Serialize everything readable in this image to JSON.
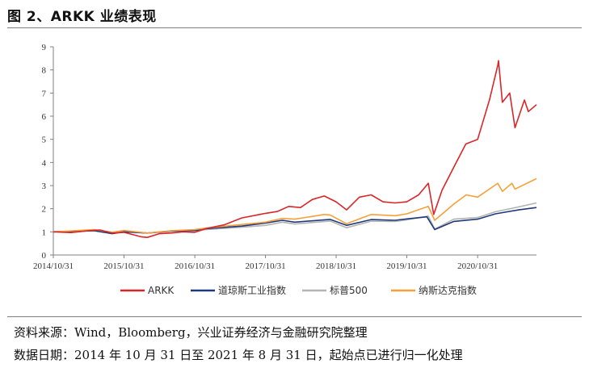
{
  "header": {
    "title": "图 2、ARKK 业绩表现"
  },
  "footer": {
    "source": "资料来源：Wind，Bloomberg，兴业证券经济与金融研究院整理",
    "date_note": "数据日期：2014 年 10 月 31 日至 2021 年 8 月 31 日，起始点已进行归一化处理"
  },
  "chart_data": {
    "type": "line",
    "x_tick_labels": [
      "2014/10/31",
      "2015/10/31",
      "2016/10/31",
      "2017/10/31",
      "2018/10/31",
      "2019/10/31",
      "2020/10/31"
    ],
    "x_range": [
      "2014-10-31",
      "2021-08-31"
    ],
    "ylim": [
      0,
      9
    ],
    "y_ticks": [
      0,
      1,
      2,
      3,
      4,
      5,
      6,
      7,
      8,
      9
    ],
    "grid": false,
    "legend_position": "bottom",
    "series": [
      {
        "name": "ARKK",
        "color": "#d9262a",
        "points": [
          [
            "2014-10-31",
            1.0
          ],
          [
            "2015-01-31",
            0.97
          ],
          [
            "2015-04-30",
            1.05
          ],
          [
            "2015-06-30",
            1.08
          ],
          [
            "2015-08-31",
            0.95
          ],
          [
            "2015-10-31",
            0.98
          ],
          [
            "2016-01-31",
            0.78
          ],
          [
            "2016-02-29",
            0.76
          ],
          [
            "2016-04-30",
            0.92
          ],
          [
            "2016-06-30",
            0.95
          ],
          [
            "2016-08-31",
            1.0
          ],
          [
            "2016-10-31",
            0.98
          ],
          [
            "2016-12-31",
            1.15
          ],
          [
            "2017-03-31",
            1.3
          ],
          [
            "2017-06-30",
            1.6
          ],
          [
            "2017-09-30",
            1.75
          ],
          [
            "2017-10-31",
            1.8
          ],
          [
            "2017-12-31",
            1.88
          ],
          [
            "2018-02-28",
            2.1
          ],
          [
            "2018-04-30",
            2.05
          ],
          [
            "2018-06-30",
            2.4
          ],
          [
            "2018-08-31",
            2.55
          ],
          [
            "2018-10-31",
            2.3
          ],
          [
            "2018-12-24",
            1.95
          ],
          [
            "2019-02-28",
            2.5
          ],
          [
            "2019-04-30",
            2.6
          ],
          [
            "2019-06-30",
            2.3
          ],
          [
            "2019-08-31",
            2.25
          ],
          [
            "2019-10-31",
            2.3
          ],
          [
            "2019-12-31",
            2.6
          ],
          [
            "2020-02-19",
            3.1
          ],
          [
            "2020-03-18",
            1.75
          ],
          [
            "2020-04-30",
            2.8
          ],
          [
            "2020-06-30",
            3.8
          ],
          [
            "2020-08-31",
            4.8
          ],
          [
            "2020-10-31",
            5.0
          ],
          [
            "2020-12-31",
            6.7
          ],
          [
            "2021-02-12",
            8.2
          ],
          [
            "2021-02-16",
            8.4
          ],
          [
            "2021-03-08",
            6.6
          ],
          [
            "2021-04-15",
            7.0
          ],
          [
            "2021-05-12",
            5.5
          ],
          [
            "2021-06-30",
            6.7
          ],
          [
            "2021-07-20",
            6.2
          ],
          [
            "2021-08-31",
            6.5
          ]
        ]
      },
      {
        "name": "道琼斯工业指数",
        "color": "#1f3a7a",
        "points": [
          [
            "2014-10-31",
            1.0
          ],
          [
            "2015-05-31",
            1.05
          ],
          [
            "2015-08-31",
            0.92
          ],
          [
            "2015-10-31",
            1.0
          ],
          [
            "2016-02-29",
            0.95
          ],
          [
            "2016-06-30",
            1.03
          ],
          [
            "2016-10-31",
            1.06
          ],
          [
            "2016-12-31",
            1.14
          ],
          [
            "2017-06-30",
            1.25
          ],
          [
            "2017-10-31",
            1.38
          ],
          [
            "2018-01-26",
            1.5
          ],
          [
            "2018-03-31",
            1.42
          ],
          [
            "2018-09-30",
            1.54
          ],
          [
            "2018-12-24",
            1.28
          ],
          [
            "2019-04-30",
            1.53
          ],
          [
            "2019-08-31",
            1.5
          ],
          [
            "2019-10-31",
            1.56
          ],
          [
            "2020-02-12",
            1.65
          ],
          [
            "2020-03-23",
            1.1
          ],
          [
            "2020-06-30",
            1.45
          ],
          [
            "2020-10-31",
            1.55
          ],
          [
            "2021-01-31",
            1.78
          ],
          [
            "2021-05-31",
            1.95
          ],
          [
            "2021-08-31",
            2.05
          ]
        ]
      },
      {
        "name": "标普500",
        "color": "#b3b3b3",
        "points": [
          [
            "2014-10-31",
            1.0
          ],
          [
            "2015-05-31",
            1.06
          ],
          [
            "2015-08-31",
            0.93
          ],
          [
            "2015-10-31",
            1.02
          ],
          [
            "2016-02-29",
            0.95
          ],
          [
            "2016-06-30",
            1.03
          ],
          [
            "2016-10-31",
            1.05
          ],
          [
            "2016-12-31",
            1.1
          ],
          [
            "2017-06-30",
            1.2
          ],
          [
            "2017-10-31",
            1.28
          ],
          [
            "2018-01-26",
            1.42
          ],
          [
            "2018-03-31",
            1.34
          ],
          [
            "2018-09-30",
            1.47
          ],
          [
            "2018-12-24",
            1.18
          ],
          [
            "2019-04-30",
            1.46
          ],
          [
            "2019-08-31",
            1.45
          ],
          [
            "2019-10-31",
            1.52
          ],
          [
            "2020-02-19",
            1.68
          ],
          [
            "2020-03-23",
            1.12
          ],
          [
            "2020-06-30",
            1.55
          ],
          [
            "2020-10-31",
            1.62
          ],
          [
            "2021-01-31",
            1.87
          ],
          [
            "2021-05-31",
            2.08
          ],
          [
            "2021-08-31",
            2.25
          ]
        ]
      },
      {
        "name": "纳斯达克指数",
        "color": "#f5a03a",
        "points": [
          [
            "2014-10-31",
            1.0
          ],
          [
            "2015-05-31",
            1.1
          ],
          [
            "2015-08-31",
            0.98
          ],
          [
            "2015-10-31",
            1.06
          ],
          [
            "2016-02-29",
            0.95
          ],
          [
            "2016-06-30",
            1.05
          ],
          [
            "2016-10-31",
            1.1
          ],
          [
            "2016-12-31",
            1.17
          ],
          [
            "2017-06-30",
            1.32
          ],
          [
            "2017-10-31",
            1.42
          ],
          [
            "2018-01-26",
            1.58
          ],
          [
            "2018-03-31",
            1.55
          ],
          [
            "2018-08-31",
            1.75
          ],
          [
            "2018-09-30",
            1.73
          ],
          [
            "2018-12-24",
            1.35
          ],
          [
            "2019-04-30",
            1.75
          ],
          [
            "2019-08-31",
            1.7
          ],
          [
            "2019-10-31",
            1.78
          ],
          [
            "2020-02-19",
            2.1
          ],
          [
            "2020-03-23",
            1.5
          ],
          [
            "2020-06-30",
            2.2
          ],
          [
            "2020-09-02",
            2.6
          ],
          [
            "2020-10-31",
            2.5
          ],
          [
            "2021-02-12",
            3.1
          ],
          [
            "2021-03-08",
            2.75
          ],
          [
            "2021-04-26",
            3.1
          ],
          [
            "2021-05-12",
            2.85
          ],
          [
            "2021-08-31",
            3.3
          ]
        ]
      }
    ]
  }
}
